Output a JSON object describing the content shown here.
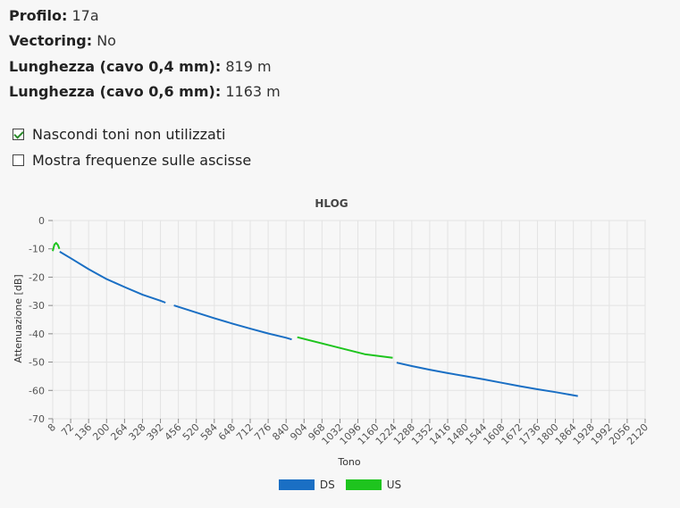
{
  "info": {
    "profile_label": "Profilo",
    "profile_value": "17a",
    "vectoring_label": "Vectoring",
    "vectoring_value": "No",
    "length04_label": "Lunghezza (cavo 0,4 mm)",
    "length04_value": "819 m",
    "length06_label": "Lunghezza (cavo 0,6 mm)",
    "length06_value": "1163 m"
  },
  "options": {
    "hide_unused": {
      "label": "Nascondi toni non utilizzati",
      "checked": true
    },
    "show_freq": {
      "label": "Mostra frequenze sulle ascisse",
      "checked": false
    }
  },
  "colors": {
    "ds": "#1a6fc4",
    "us": "#1ec41e",
    "grid": "#e3e3e3"
  },
  "chart_data": {
    "type": "line",
    "title": "HLOG",
    "xlabel": "Tono",
    "ylabel": "Attenuazione [dB]",
    "xlim": [
      8,
      2120
    ],
    "ylim": [
      -70,
      0
    ],
    "x_ticks": [
      8,
      72,
      136,
      200,
      264,
      328,
      392,
      456,
      520,
      584,
      648,
      712,
      776,
      840,
      904,
      968,
      1032,
      1096,
      1160,
      1224,
      1288,
      1352,
      1416,
      1480,
      1544,
      1608,
      1672,
      1736,
      1800,
      1864,
      1928,
      1992,
      2056,
      2120
    ],
    "y_ticks": [
      0,
      -10,
      -20,
      -30,
      -40,
      -50,
      -60,
      -70
    ],
    "grid": true,
    "legend_position": "bottom",
    "series": [
      {
        "name": "US",
        "color": "#1ec41e",
        "segments": [
          {
            "x": [
              8,
              14,
              20,
              26,
              32
            ],
            "y": [
              -10.8,
              -8.5,
              -7.9,
              -8.6,
              -10.0
            ]
          },
          {
            "x": [
              880,
              1000,
              1120,
              1220
            ],
            "y": [
              -41.2,
              -44.2,
              -47.2,
              -48.5
            ]
          }
        ]
      },
      {
        "name": "DS",
        "color": "#1a6fc4",
        "segments": [
          {
            "x": [
              33,
              72,
              136,
              200,
              264,
              328,
              392,
              410
            ],
            "y": [
              -11.0,
              -13.3,
              -17.2,
              -20.7,
              -23.5,
              -26.2,
              -28.3,
              -29.0
            ]
          },
          {
            "x": [
              440,
              520,
              584,
              648,
              712,
              776,
              840,
              860
            ],
            "y": [
              -30.0,
              -32.5,
              -34.5,
              -36.4,
              -38.2,
              -39.9,
              -41.4,
              -42.0
            ]
          },
          {
            "x": [
              1234,
              1288,
              1352,
              1416,
              1480,
              1544,
              1608,
              1672,
              1736,
              1800,
              1880
            ],
            "y": [
              -50.2,
              -51.4,
              -52.7,
              -53.9,
              -55.0,
              -56.1,
              -57.3,
              -58.5,
              -59.6,
              -60.6,
              -62.0
            ]
          }
        ]
      }
    ]
  },
  "legend": [
    {
      "label": "DS",
      "color": "#1a6fc4"
    },
    {
      "label": "US",
      "color": "#1ec41e"
    }
  ]
}
